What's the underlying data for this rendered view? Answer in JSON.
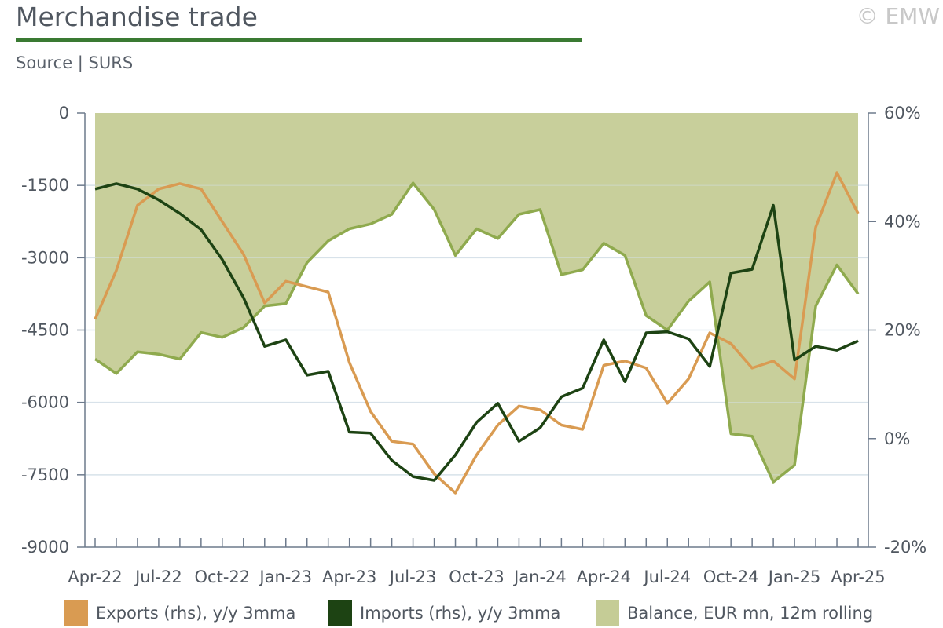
{
  "header": {
    "title": "Merchandise trade",
    "source": "Source | SURS",
    "copyright": "© EMW"
  },
  "colors": {
    "exports": "#d99b52",
    "imports": "#1d4313",
    "balance_fill": "#c5cc96",
    "balance_line": "#8faa4e",
    "axis": "#6d7a8c",
    "grid": "#d8e3ea",
    "rule": "#3a7a32"
  },
  "chart_data": {
    "type": "line",
    "x": [
      "Apr-22",
      "May-22",
      "Jun-22",
      "Jul-22",
      "Aug-22",
      "Sep-22",
      "Oct-22",
      "Nov-22",
      "Dec-22",
      "Jan-23",
      "Feb-23",
      "Mar-23",
      "Apr-23",
      "May-23",
      "Jun-23",
      "Jul-23",
      "Aug-23",
      "Sep-23",
      "Oct-23",
      "Nov-23",
      "Dec-23",
      "Jan-24",
      "Feb-24",
      "Mar-24",
      "Apr-24",
      "May-24",
      "Jun-24",
      "Jul-24",
      "Aug-24",
      "Sep-24",
      "Oct-24",
      "Nov-24",
      "Dec-24",
      "Jan-25",
      "Feb-25",
      "Mar-25",
      "Apr-25"
    ],
    "x_tick_labels": [
      "Apr-22",
      "Jul-22",
      "Oct-22",
      "Jan-23",
      "Apr-23",
      "Jul-23",
      "Oct-23",
      "Jan-24",
      "Apr-24",
      "Jul-24",
      "Oct-24",
      "Jan-25",
      "Apr-25"
    ],
    "y_left": {
      "ticks": [
        "0",
        "-1500",
        "-3000",
        "-4500",
        "-6000",
        "-7500",
        "-9000"
      ],
      "ylim": [
        -9000,
        0
      ]
    },
    "y_right": {
      "ticks": [
        "60%",
        "40%",
        "20%",
        "0%",
        "-20%"
      ],
      "ylim": [
        -20,
        60
      ]
    },
    "grid": true,
    "legend_position": "bottom",
    "series": [
      {
        "name": "Exports (rhs), y/y 3mma",
        "axis": "right",
        "values": [
          22,
          31,
          43,
          46,
          47,
          46,
          40,
          34,
          25,
          29,
          28,
          27,
          14,
          5,
          -0.5,
          -1,
          -6.5,
          -10,
          -3,
          2.5,
          6,
          5.3,
          2.5,
          1.7,
          13.5,
          14.3,
          13,
          6.5,
          11,
          19.5,
          17.5,
          13,
          14.3,
          11,
          39,
          49,
          41.5
        ]
      },
      {
        "name": "Imports (rhs), y/y 3mma",
        "axis": "right",
        "values": [
          46,
          47,
          46,
          44,
          41.5,
          38.5,
          33,
          26,
          17,
          18.2,
          11.7,
          12.4,
          1.2,
          1,
          -4,
          -7,
          -7.7,
          -3,
          3,
          6.5,
          -0.5,
          2,
          7.7,
          9.3,
          18.2,
          10.5,
          19.5,
          19.7,
          18.4,
          13.3,
          30.5,
          31.2,
          43,
          14.5,
          17,
          16.3,
          18
        ]
      },
      {
        "name": "Balance, EUR mn, 12m rolling",
        "axis": "left",
        "values": [
          -5100,
          -5400,
          -4950,
          -5000,
          -5100,
          -4550,
          -4650,
          -4450,
          -4000,
          -3950,
          -3100,
          -2650,
          -2400,
          -2300,
          -2100,
          -1450,
          -2000,
          -2950,
          -2400,
          -2600,
          -2100,
          -2000,
          -3350,
          -3250,
          -2700,
          -2950,
          -4200,
          -4500,
          -3900,
          -3500,
          -6650,
          -6700,
          -7650,
          -7300,
          -4000,
          -3150,
          -3750
        ]
      }
    ]
  }
}
